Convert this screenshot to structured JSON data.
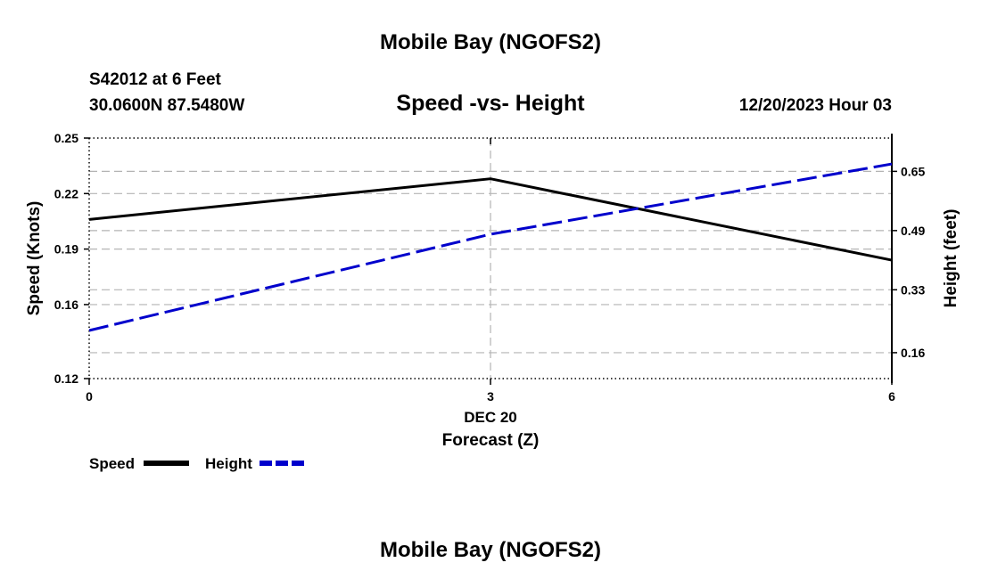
{
  "page_title": "Mobile Bay (NGOFS2)",
  "footer_title": "Mobile Bay (NGOFS2)",
  "station": {
    "name": "S42012 at 6 Feet",
    "coords": "30.0600N  87.5480W"
  },
  "timestamp": "12/20/2023 Hour 03",
  "colors": {
    "speed": "#000000",
    "height": "#0000cc",
    "grid": "#b4b4b4"
  },
  "chart_data": {
    "type": "line",
    "title": "Speed -vs- Height",
    "xlabel": "Forecast (Z)",
    "x_date_label": "DEC 20",
    "ylabel_left": "Speed (Knots)",
    "ylabel_right": "Height (feet)",
    "x": [
      0,
      3,
      6
    ],
    "x_ticks": [
      "0",
      "3",
      "6"
    ],
    "xlim": [
      0,
      6
    ],
    "ylim_left": [
      0.12,
      0.25
    ],
    "yticks_left": [
      "0.12",
      "0.16",
      "0.19",
      "0.22",
      "0.25"
    ],
    "ylim_right": [
      0.09,
      0.74
    ],
    "yticks_right": [
      "0.16",
      "0.33",
      "0.49",
      "0.65"
    ],
    "grid": true,
    "series": [
      {
        "name": "Speed",
        "axis": "left",
        "style": "solid",
        "values": [
          0.206,
          0.228,
          0.184
        ]
      },
      {
        "name": "Height",
        "axis": "right",
        "style": "dashed",
        "values": [
          0.22,
          0.48,
          0.67
        ]
      }
    ],
    "legend": [
      {
        "label": "Speed"
      },
      {
        "label": "Height"
      }
    ]
  }
}
